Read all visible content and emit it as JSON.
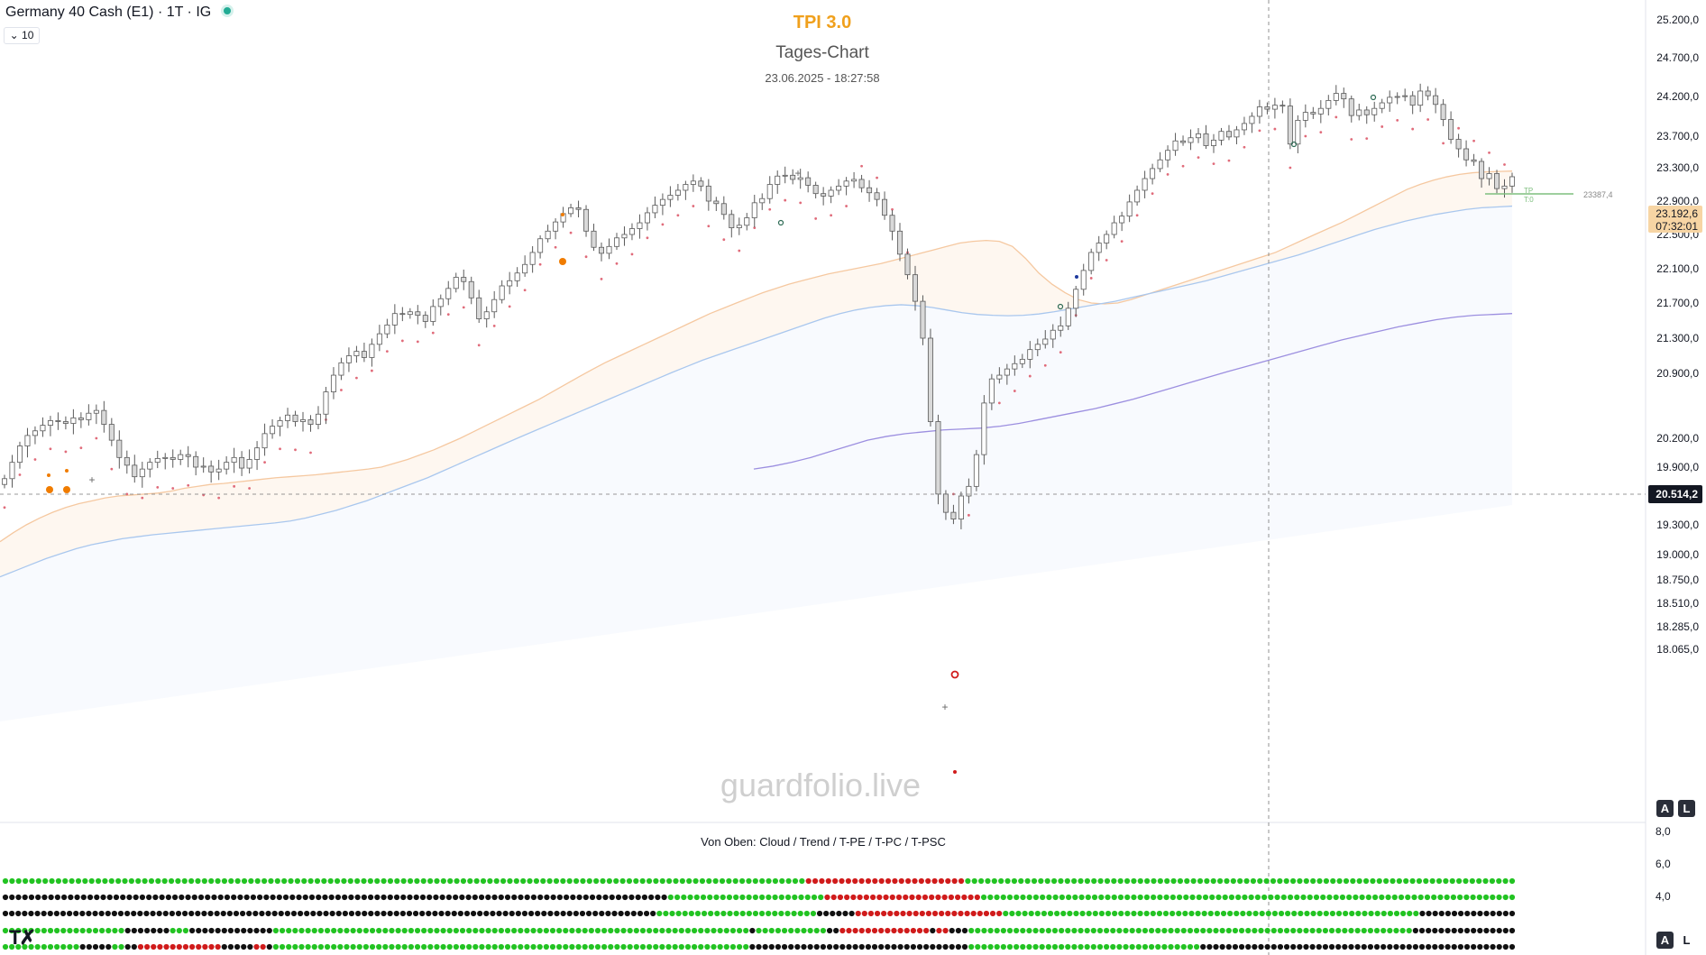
{
  "header": {
    "symbol": "Germany 40 Cash (E1) · 1T · IG",
    "indicator_count": "10",
    "chevron": "chevron-down-icon"
  },
  "overlay": {
    "title": "TPI 3.0",
    "subtitle": "Tages-Chart",
    "timestamp": "23.06.2025 - 18:27:58",
    "watermark": "guardfolio.live"
  },
  "colors": {
    "accent_title": "#f0a01c",
    "candle_body": "#d9d9d9",
    "candle_outline": "#5a5a5a",
    "ema_orange": "#f5c8a0",
    "ema_blue": "#a9c7ee",
    "ema_purple": "#9c8fe0",
    "psar": "#e06b7a",
    "dot_green": "#22c322",
    "dot_black": "#111111",
    "dot_red": "#d01b1b",
    "price_tag": "#f7d5a4"
  },
  "price_axis": {
    "labels": [
      "25.200,0",
      "24.700,0",
      "24.200,0",
      "23.700,0",
      "23.300,0",
      "22.900,0",
      "22.500,0",
      "22.100,0",
      "21.700,0",
      "21.300,0",
      "20.900,0",
      "20.200,0",
      "19.900,0",
      "19.600,0",
      "19.300,0",
      "19.000,0",
      "18.750,0",
      "18.510,0",
      "18.285,0",
      "18.065,0"
    ],
    "current_price": "23.192,6",
    "countdown": "07:32:01",
    "crosshair_price": "20.514,2",
    "tp_value": "23387,4",
    "tp_label": "TP",
    "tp_sublabel": "T:0"
  },
  "lower_pane": {
    "caption": "Von Oben: Cloud / Trend / T-PE / T-PC / T-PSC",
    "axis_labels": [
      "8,0",
      "6,0",
      "4,0"
    ],
    "rows": [
      "GGGGGGGGGGGGGGGGGGGGGGGGGGGGGGGGGGGGGGGGGGGGGGGGGGGGGGGGGGGGGGGGGGGGGGGGGGGGGGGGGGGGGGGGGGGGGGGGGGGGGGGGGGGGGGGGGGGGGGGGGRRRRRRRRRRRRRRRRRRRRRRRRGGGGGGGGGGGGGGGGGGGGGGGGGGGGGGGGGGGGGGGGGGGGGGGGGGGGGGGGGGGGGGGGGGGGGGGGGGGGGGGGGGG",
      "KKKKKKKKKKKKKKKKKKKKKKKKKKKKKKKKKKKKKKKKKKKKKKKKKKKKKKKKKKKKKKKKKKKKKKKKKKKKKKKKKKKKKKKKKKKKKKKKKKKKKKGGGGGGGGGGGGGGGGGGGGGGGGRRRRRRRRRRRRRRRRRRRRRRRRGGGGGGGGGGGGGGGGGGGGGGGGGGGGGGGGGGGGGGGGGGGGGGGGGGGGGGGGGGGGGGGGGGGGGGGGGGGGGGGGGG",
      "KKKKKKKKKKKKKKKKKKKKKKKKKKKKKKKKKKKKKKKKKKKKKKKKKKKKKKKKKKKKKKKKKKKKKKKKKKKKKKKKKKKKKKKKKKKKKKKKKKKKKKGGGGGGGGGGGGGGGGGGGGGGGGGKKKKKKRRRRRRRRRRRRRRRRRRRRRRRGGGGGGGGGGGGGGGGGGGGGGGGGGGGGGGGGGGGGGGGGGGGGGGGGGGGGGGGGGGGGGGGGKKKKKKKKKKKKKKK",
      "GGGGGGGGGGGGGGGGGGGKKKKKKKGGGKKKKKKKKKKKKKGGGGGGGGGGGGGGGGGGGGGGGGGGGGGGGGGGGGGGGGGGGGGGGGGGGGGGGGGGGGGGGGGGGGGGGGGGKGGGGGGGGGGGKKRRRRRRRRRRRRRRKRRKKKGGGGGGGGGGGGGGGGGGGGGGGGGGGGGGGGGGGGGGGGGGGGGGGGGGGGGGGGGGGGGGGGGGGGGKKKKKKKKKKKKKKKK",
      "GGGGGGGGGGGGKKKKKGGKKRRRRRRRRRRRRRKKKKKRRKGGGGGGGGGGGGGGGGGGGGGGGGGGGGGGGGGGGGGGGGGGGGGGGGGGGGGGGGGGGGGGGGGGGGGGGGGGKKKKKKKKKKKKKKKKKKKKKKKKKKKKKKKKKKGGGGGGGGGGGGGGGGGGGGGGGGGGGGGGGGGGGGKKKKKKKKKKKKKKKKKKKKKKKKKKKKKKKKKKKKKKKKKKKKKKKKK"
    ]
  },
  "chart_data": {
    "type": "line",
    "title": "TPI 3.0",
    "subtitle": "Tages-Chart",
    "symbol": "Germany 40 Cash (E1) · 1T · IG",
    "ylim": [
      18065,
      25200
    ],
    "y_ticks": [
      25200,
      24700,
      24200,
      23700,
      23300,
      22900,
      22500,
      22100,
      21700,
      21300,
      20900,
      20200,
      19900,
      19600,
      19300,
      19000,
      18750,
      18510,
      18285,
      18065
    ],
    "last_price": 23192.6,
    "crosshair_price": 20514.2,
    "take_profit": 23387.4,
    "candles_close": [
      19780,
      19950,
      20120,
      20230,
      20280,
      20340,
      20390,
      20380,
      20360,
      20420,
      20400,
      20470,
      20500,
      20350,
      20180,
      20000,
      19920,
      19800,
      19880,
      19950,
      19990,
      20000,
      19980,
      20030,
      20010,
      19900,
      19910,
      19850,
      19880,
      19950,
      20000,
      19890,
      19980,
      20100,
      20250,
      20330,
      20390,
      20450,
      20380,
      20400,
      20350,
      20460,
      20700,
      20880,
      21020,
      21100,
      21150,
      21080,
      21230,
      21350,
      21450,
      21580,
      21570,
      21600,
      21560,
      21490,
      21660,
      21750,
      21870,
      22000,
      21950,
      21760,
      21520,
      21600,
      21740,
      21900,
      21960,
      22050,
      22150,
      22290,
      22450,
      22540,
      22650,
      22750,
      22820,
      22800,
      22540,
      22350,
      22280,
      22360,
      22460,
      22500,
      22570,
      22640,
      22760,
      22850,
      22920,
      22970,
      23030,
      23100,
      23140,
      23080,
      22900,
      22870,
      22740,
      22580,
      22610,
      22700,
      22880,
      22930,
      23100,
      23200,
      23210,
      23160,
      23180,
      23090,
      22990,
      22960,
      23030,
      23080,
      23140,
      23160,
      23060,
      23000,
      22920,
      22730,
      22540,
      22270,
      22030,
      21720,
      21300,
      20380,
      19620,
      19430,
      19360,
      19600,
      19700,
      20030,
      20580,
      20840,
      20880,
      20950,
      21010,
      21060,
      21170,
      21230,
      21290,
      21390,
      21440,
      21640,
      21860,
      22080,
      22290,
      22400,
      22500,
      22640,
      22720,
      22890,
      23030,
      23170,
      23290,
      23400,
      23520,
      23640,
      23620,
      23680,
      23730,
      23580,
      23650,
      23760,
      23690,
      23780,
      23860,
      23950,
      24070,
      24040,
      24090,
      24080,
      23600,
      23900,
      24000,
      23980,
      24050,
      24150,
      24240,
      24170,
      23960,
      24030,
      23970,
      24050,
      24120,
      24190,
      24200,
      24210,
      24090,
      24270,
      24210,
      24100,
      23910,
      23660,
      23540,
      23400,
      23380,
      23170,
      23230,
      23050,
      23080,
      23192
    ],
    "series": [
      {
        "name": "EMA orange",
        "values": [
          19130,
          19220,
          19300,
          19370,
          19430,
          19480,
          19520,
          19550,
          19580,
          19600,
          19610,
          19620,
          19630,
          19650,
          19680,
          19700,
          19720,
          19730,
          19745,
          19760,
          19775,
          19790,
          19800,
          19810,
          19820,
          19835,
          19850,
          19865,
          19880,
          19900,
          19940,
          19980,
          20030,
          20080,
          20140,
          20200,
          20270,
          20340,
          20410,
          20480,
          20550,
          20620,
          20700,
          20780,
          20860,
          20940,
          21020,
          21090,
          21160,
          21230,
          21300,
          21370,
          21440,
          21510,
          21580,
          21640,
          21700,
          21760,
          21820,
          21870,
          21920,
          21960,
          22000,
          22040,
          22070,
          22100,
          22130,
          22160,
          22200,
          22240,
          22280,
          22320,
          22360,
          22400,
          22420,
          22430,
          22420,
          22360,
          22220,
          22050,
          21920,
          21820,
          21740,
          21700,
          21690,
          21700,
          21740,
          21790,
          21840,
          21890,
          21940,
          21990,
          22040,
          22090,
          22140,
          22190,
          22240,
          22290,
          22360,
          22430,
          22500,
          22570,
          22640,
          22720,
          22800,
          22880,
          22960,
          23040,
          23100,
          23150,
          23190,
          23220,
          23240,
          23250,
          23255,
          23260
        ]
      },
      {
        "name": "EMA blue",
        "values": [
          18780,
          18840,
          18900,
          18960,
          19010,
          19060,
          19100,
          19130,
          19160,
          19180,
          19200,
          19215,
          19230,
          19245,
          19260,
          19275,
          19290,
          19305,
          19320,
          19340,
          19370,
          19410,
          19450,
          19500,
          19550,
          19610,
          19670,
          19730,
          19790,
          19860,
          19930,
          20000,
          20070,
          20140,
          20210,
          20280,
          20350,
          20420,
          20490,
          20560,
          20630,
          20700,
          20770,
          20840,
          20910,
          20980,
          21050,
          21110,
          21170,
          21230,
          21290,
          21350,
          21410,
          21470,
          21530,
          21580,
          21620,
          21650,
          21670,
          21680,
          21670,
          21650,
          21620,
          21590,
          21570,
          21560,
          21555,
          21560,
          21575,
          21600,
          21630,
          21660,
          21690,
          21720,
          21760,
          21800,
          21840,
          21880,
          21920,
          21960,
          22010,
          22060,
          22110,
          22160,
          22210,
          22260,
          22320,
          22380,
          22440,
          22500,
          22560,
          22610,
          22660,
          22700,
          22740,
          22770,
          22800,
          22820,
          22830,
          22840
        ]
      },
      {
        "name": "EMA purple",
        "values": [
          19880,
          19910,
          19950,
          20000,
          20060,
          20120,
          20180,
          20220,
          20250,
          20270,
          20290,
          20300,
          20310,
          20330,
          20360,
          20400,
          20440,
          20480,
          20520,
          20570,
          20620,
          20680,
          20740,
          20800,
          20860,
          20920,
          20980,
          21040,
          21100,
          21160,
          21220,
          21280,
          21330,
          21380,
          21430,
          21470,
          21510,
          21540,
          21560,
          21570,
          21580
        ]
      }
    ]
  }
}
